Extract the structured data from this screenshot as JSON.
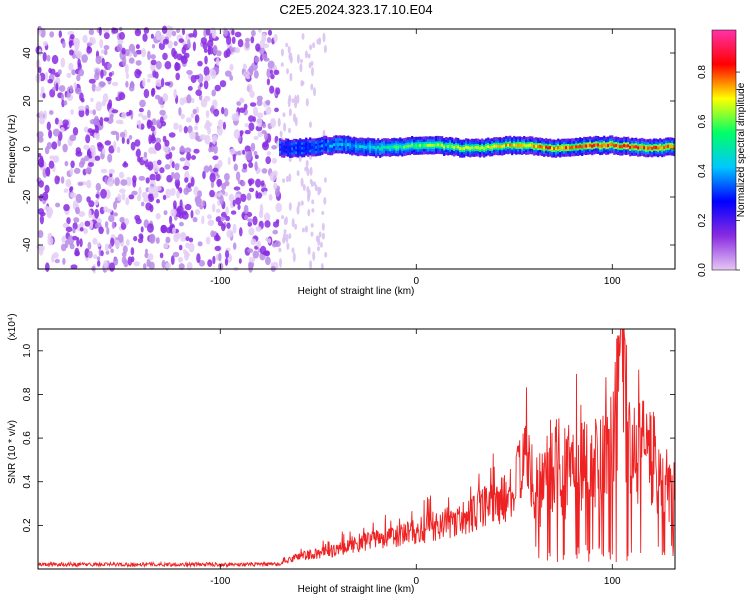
{
  "title": "C2E5.2024.323.17.10.E04",
  "chart_data": [
    {
      "type": "heatmap",
      "xlabel": "Height of straight line (km)",
      "ylabel": "Frequency (Hz)",
      "colorbar_label": "Normalized spectral amplitude",
      "xlim": [
        -193,
        132
      ],
      "ylim": [
        -50,
        50
      ],
      "xticks": [
        -100,
        0,
        100
      ],
      "yticks": [
        -40,
        -20,
        0,
        20,
        40
      ],
      "colorbar_ticks": [
        0.0,
        0.2,
        0.4,
        0.6,
        0.8
      ],
      "colorbar_range": [
        0.0,
        0.97
      ],
      "colormap": [
        "#e6c8f5",
        "#8a2be2",
        "#0000ff",
        "#00c8ff",
        "#00ff66",
        "#ffff00",
        "#ff0000",
        "#ff33aa"
      ],
      "ridge": {
        "frequency_hz": 1,
        "start_km": -70,
        "end_km": 132,
        "approx_amplitude": [
          {
            "x": -70,
            "y": 0.3
          },
          {
            "x": -40,
            "y": 0.4
          },
          {
            "x": 0,
            "y": 0.6
          },
          {
            "x": 50,
            "y": 0.75
          },
          {
            "x": 100,
            "y": 0.85
          },
          {
            "x": 132,
            "y": 0.8
          }
        ]
      },
      "noise_region_km": [
        -193,
        -70
      ]
    },
    {
      "type": "line",
      "xlabel": "Height of straight line (km)",
      "ylabel": "SNR (10 * v/v)",
      "y_multiplier": "(x10⁴)",
      "xlim": [
        -193,
        132
      ],
      "ylim": [
        0,
        1.1
      ],
      "xticks": [
        -100,
        0,
        100
      ],
      "yticks": [
        0.2,
        0.4,
        0.6,
        0.8,
        1.0
      ],
      "color": "#ee2222",
      "series": [
        {
          "name": "",
          "x": [
            -193,
            -150,
            -100,
            -70,
            -60,
            -50,
            -40,
            -30,
            -20,
            -10,
            0,
            10,
            20,
            30,
            40,
            50,
            55,
            60,
            70,
            75,
            80,
            90,
            100,
            105,
            110,
            120,
            125,
            132
          ],
          "y": [
            0.02,
            0.02,
            0.02,
            0.02,
            0.06,
            0.07,
            0.09,
            0.12,
            0.13,
            0.15,
            0.17,
            0.2,
            0.22,
            0.26,
            0.3,
            0.35,
            0.55,
            0.3,
            0.5,
            0.4,
            0.55,
            0.45,
            0.6,
            0.9,
            0.5,
            0.55,
            0.4,
            0.35
          ]
        }
      ]
    }
  ]
}
